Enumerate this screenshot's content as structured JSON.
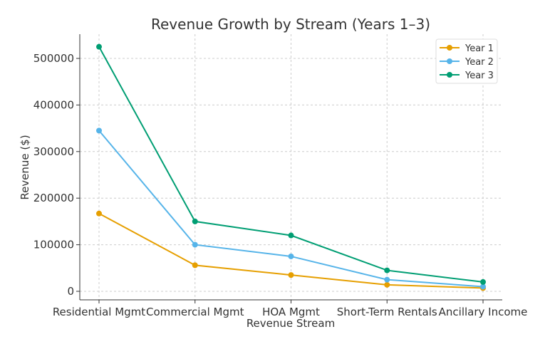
{
  "chart_data": {
    "type": "line",
    "title": "Revenue Growth by Stream (Years 1–3)",
    "xlabel": "Revenue Stream",
    "ylabel": "Revenue ($)",
    "categories": [
      "Residential Mgmt",
      "Commercial Mgmt",
      "HOA Mgmt",
      "Short-Term Rentals",
      "Ancillary Income"
    ],
    "ylim": [
      -18000,
      550000
    ],
    "yticks": [
      0,
      100000,
      200000,
      300000,
      400000,
      500000
    ],
    "grid": true,
    "legend": "top-right",
    "series": [
      {
        "name": "Year 1",
        "color": "#E69F00",
        "values": [
          167000,
          56000,
          35000,
          14000,
          7000
        ]
      },
      {
        "name": "Year 2",
        "color": "#56B4E9",
        "values": [
          345000,
          100000,
          75000,
          25000,
          10000
        ]
      },
      {
        "name": "Year 3",
        "color": "#009E73",
        "values": [
          525000,
          150000,
          120000,
          45000,
          20000
        ]
      }
    ]
  }
}
